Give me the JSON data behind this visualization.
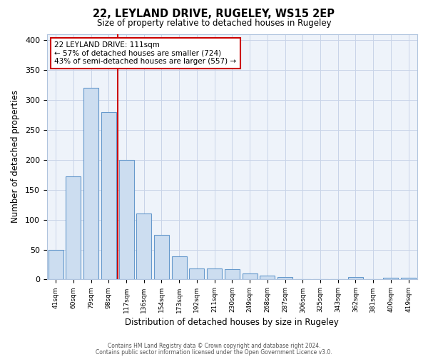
{
  "title": "22, LEYLAND DRIVE, RUGELEY, WS15 2EP",
  "subtitle": "Size of property relative to detached houses in Rugeley",
  "xlabel": "Distribution of detached houses by size in Rugeley",
  "ylabel": "Number of detached properties",
  "bar_color": "#ccddf0",
  "bar_edge_color": "#6699cc",
  "categories": [
    "41sqm",
    "60sqm",
    "79sqm",
    "98sqm",
    "117sqm",
    "136sqm",
    "154sqm",
    "173sqm",
    "192sqm",
    "211sqm",
    "230sqm",
    "249sqm",
    "268sqm",
    "287sqm",
    "306sqm",
    "325sqm",
    "343sqm",
    "362sqm",
    "381sqm",
    "400sqm",
    "419sqm"
  ],
  "values": [
    50,
    172,
    320,
    280,
    200,
    110,
    75,
    39,
    18,
    18,
    17,
    10,
    6,
    4,
    0,
    0,
    0,
    4,
    0,
    3,
    3
  ],
  "vline_color": "#cc0000",
  "vline_position": 3.5,
  "annotation_title": "22 LEYLAND DRIVE: 111sqm",
  "annotation_line1": "← 57% of detached houses are smaller (724)",
  "annotation_line2": "43% of semi-detached houses are larger (557) →",
  "annotation_box_color": "#ffffff",
  "annotation_box_edge": "#cc0000",
  "ylim": [
    0,
    410
  ],
  "yticks": [
    0,
    50,
    100,
    150,
    200,
    250,
    300,
    350,
    400
  ],
  "bg_color": "#eef3fa",
  "footer1": "Contains HM Land Registry data © Crown copyright and database right 2024.",
  "footer2": "Contains public sector information licensed under the Open Government Licence v3.0."
}
